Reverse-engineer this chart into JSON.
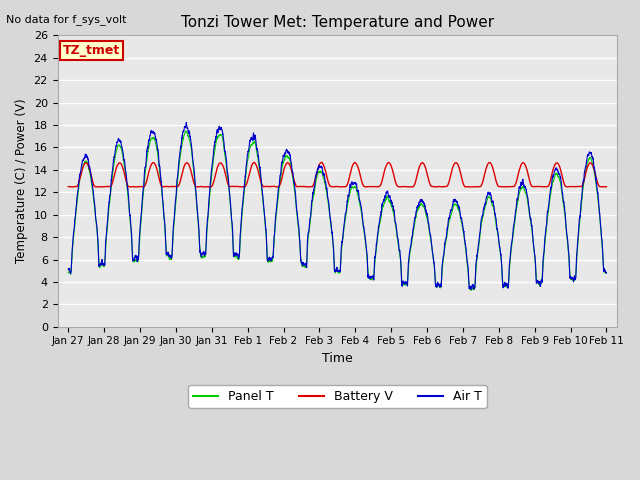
{
  "title": "Tonzi Tower Met: Temperature and Power",
  "xlabel": "Time",
  "ylabel": "Temperature (C) / Power (V)",
  "ylim": [
    0,
    26
  ],
  "yticks": [
    0,
    2,
    4,
    6,
    8,
    10,
    12,
    14,
    16,
    18,
    20,
    22,
    24,
    26
  ],
  "bg_color": "#e8e8e8",
  "grid_color": "#ffffff",
  "no_data_text": "No data for f_sys_volt",
  "legend_labels": [
    "Panel T",
    "Battery V",
    "Air T"
  ],
  "legend_colors": [
    "#00cc00",
    "#dd0000",
    "#0000cc"
  ],
  "watermark_text": "TZ_tmet",
  "watermark_bg": "#ffffcc",
  "watermark_border": "#cc0000",
  "x_tick_labels": [
    "Jan 27",
    "Jan 28",
    "Jan 29",
    "Jan 30",
    "Jan 31",
    "Feb 1",
    "Feb 2",
    "Feb 3",
    "Feb 4",
    "Feb 5",
    "Feb 6",
    "Feb 7",
    "Feb 8",
    "Feb 9",
    "Feb 10",
    "Feb 11"
  ],
  "n_points": 3360
}
